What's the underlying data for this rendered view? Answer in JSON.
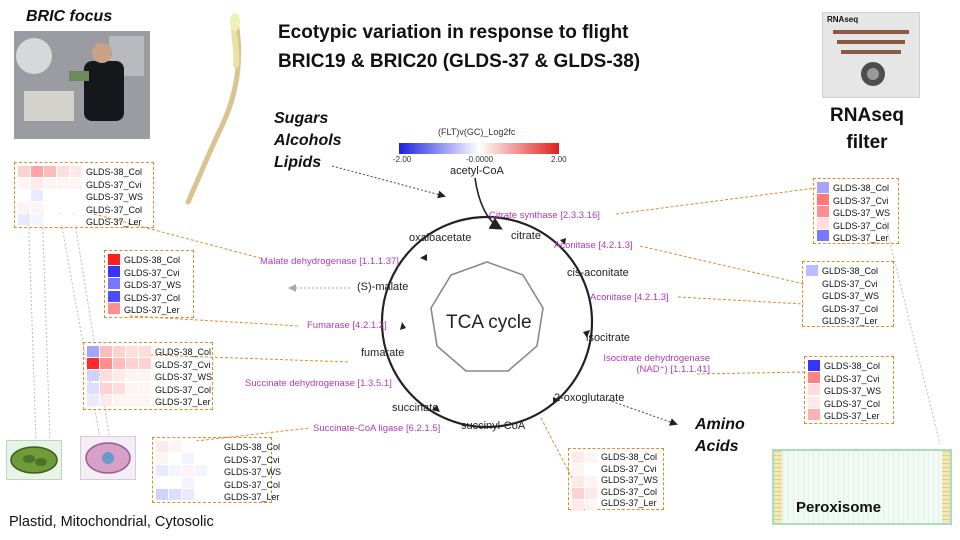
{
  "title": {
    "line1": "Ecotypic variation in response to flight",
    "line2": "BRIC19 & BRIC20 (GLDS-37 & GLDS-38)"
  },
  "bric_label": "BRIC focus",
  "inputs_label": [
    "Sugars",
    "Alcohols",
    "Lipids"
  ],
  "amino_label": [
    "Amino",
    "Acids"
  ],
  "rnaseq": {
    "thumb_label": "RNAseq",
    "filter": [
      "RNAseq",
      "filter"
    ]
  },
  "legend": {
    "title": "(FLT)v(GC)_Log2fc",
    "min": "-2.00",
    "mid": "-0.0000",
    "max": "2.00",
    "low_color": "#1f1fe0",
    "high_color": "#e01f1f"
  },
  "cycle_center": "TCA cycle",
  "metabolites": {
    "acetylcoa": "acetyl-CoA",
    "citrate": "citrate",
    "cisaconitate": "cis-aconitate",
    "isocitrate": "isocitrate",
    "oxoglutarate": "2-oxoglutarate",
    "succinylcoa": "succinyl-CoA",
    "succinate": "succinate",
    "fumarate": "fumarate",
    "malate": "(S)-malate",
    "oxaloacetate": "oxaloacetate"
  },
  "enzymes": {
    "citrate_synthase": "Citrate synthase [2.3.3.16]",
    "aconitase1": "Aconitase [4.2.1.3]",
    "aconitase2": "Aconitase [4.2.1.3]",
    "idh_line1": "Isocitrate dehydrogenase",
    "idh_line2": "(NAD⁺) [1.1.1.41]",
    "succinyl_ligase": "Succinate-CoA ligase [6.2.1.5]",
    "succinate_dh": "Succinate dehydrogenase [1.3.5.1]",
    "fumarase": "Fumarase [4.2.1.2]",
    "malate_dh": "Malate dehydrogenase [1.1.1.37]"
  },
  "sample_labels": [
    "GLDS-38_Col",
    "GLDS-37_Cvi",
    "GLDS-37_WS",
    "GLDS-37_Col",
    "GLDS-37_Ler"
  ],
  "heatmaps": {
    "malate_dh": [
      [
        0.2,
        0.4,
        0.3,
        0.15,
        0.1
      ],
      [
        0.05,
        0.1,
        0.05,
        0.05,
        0.05
      ],
      [
        0,
        -0.1,
        0,
        0,
        0
      ],
      [
        0.05,
        0.05,
        0,
        0,
        0
      ],
      [
        -0.1,
        -0.05,
        0,
        0,
        0
      ]
    ],
    "malate_small": [
      [
        1.0
      ],
      [
        -0.9
      ],
      [
        -0.6
      ],
      [
        -0.8
      ],
      [
        0.5
      ]
    ],
    "succinate_dh": [
      [
        -0.4,
        0.3,
        0.2,
        0.15,
        0.15
      ],
      [
        0.95,
        0.5,
        0.3,
        0.2,
        0.2
      ],
      [
        -0.2,
        0.15,
        0.1,
        0.05,
        0.05
      ],
      [
        -0.15,
        0.2,
        0.15,
        0.05,
        0.05
      ],
      [
        -0.1,
        0.1,
        0.05,
        0.05,
        0.05
      ]
    ],
    "succinyl_ligase": [
      [
        0.1,
        0.05,
        0,
        0,
        0
      ],
      [
        0.05,
        0,
        -0.05,
        0,
        0
      ],
      [
        -0.1,
        -0.05,
        0.05,
        -0.05,
        0
      ],
      [
        0,
        0,
        -0.05,
        0,
        0
      ],
      [
        -0.2,
        -0.15,
        -0.1,
        0,
        0
      ]
    ],
    "citrate_synthase": [
      [
        -0.4
      ],
      [
        0.6
      ],
      [
        0.5
      ],
      [
        0.15
      ],
      [
        -0.6
      ]
    ],
    "aconitase": [
      [
        -0.3
      ],
      [
        0
      ],
      [
        0
      ],
      [
        0
      ],
      [
        0
      ]
    ],
    "isocitrate_dh": [
      [
        -0.9
      ],
      [
        0.55
      ],
      [
        0.15
      ],
      [
        0.1
      ],
      [
        0.35
      ]
    ],
    "oxoglutarate": [
      [
        0.1,
        0.05
      ],
      [
        0.05,
        0
      ],
      [
        0.1,
        0.05
      ],
      [
        0.2,
        0.1
      ],
      [
        0.1,
        0.05
      ]
    ]
  },
  "bottom_caption": "Plastid, Mitochondrial, Cytosolic",
  "peroxisome_label": "Peroxisome"
}
